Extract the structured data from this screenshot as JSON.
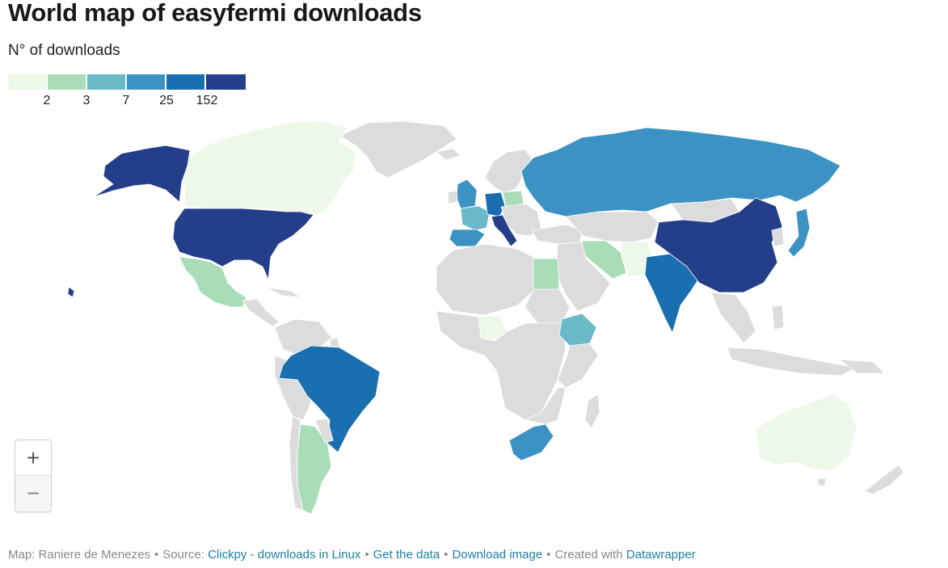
{
  "title": "World map of easyfermi downloads",
  "subtitle": "N° of downloads",
  "legend": {
    "colors": [
      "#edf8e9",
      "#a9ddb7",
      "#6ab9c9",
      "#3c93c3",
      "#1a6fb0",
      "#253e8a"
    ],
    "ticks": [
      "2",
      "3",
      "7",
      "25",
      "152"
    ]
  },
  "map_values": [
    {
      "country": "United States",
      "bin": 5
    },
    {
      "country": "Alaska",
      "bin": 5
    },
    {
      "country": "China",
      "bin": 5
    },
    {
      "country": "Italy",
      "bin": 5
    },
    {
      "country": "India",
      "bin": 4
    },
    {
      "country": "Brazil",
      "bin": 4
    },
    {
      "country": "Germany",
      "bin": 4
    },
    {
      "country": "Russia",
      "bin": 3
    },
    {
      "country": "Japan",
      "bin": 3
    },
    {
      "country": "Spain",
      "bin": 3
    },
    {
      "country": "United Kingdom",
      "bin": 3
    },
    {
      "country": "South Africa",
      "bin": 3
    },
    {
      "country": "France",
      "bin": 2
    },
    {
      "country": "Ethiopia",
      "bin": 2
    },
    {
      "country": "Mexico",
      "bin": 1
    },
    {
      "country": "Argentina",
      "bin": 1
    },
    {
      "country": "Iran",
      "bin": 1
    },
    {
      "country": "Egypt",
      "bin": 1
    },
    {
      "country": "Poland",
      "bin": 1
    },
    {
      "country": "Canada",
      "bin": 0
    },
    {
      "country": "Australia",
      "bin": 0
    },
    {
      "country": "Nigeria",
      "bin": 0
    },
    {
      "country": "Pakistan",
      "bin": 0
    }
  ],
  "zoom": {
    "in_label": "+",
    "out_label": "−"
  },
  "footer": {
    "map_credit": "Map: Raniere de Menezes",
    "source_prefix": "Source:",
    "source_link": "Clickpy - downloads in Linux",
    "get_data": "Get the data",
    "download_image": "Download image",
    "created_prefix": "Created with",
    "created_link": "Datawrapper"
  },
  "no_data_color": "#dcdcdc"
}
